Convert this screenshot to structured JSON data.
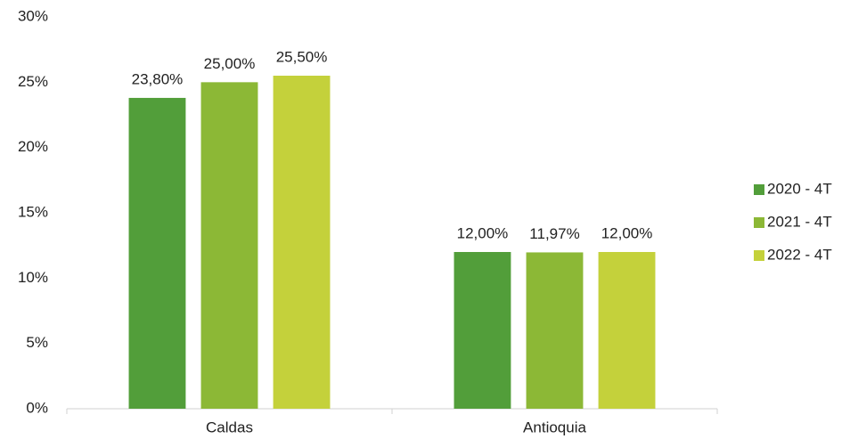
{
  "chart_data": {
    "type": "bar",
    "categories": [
      "Caldas",
      "Antioquia"
    ],
    "series": [
      {
        "name": "2020 - 4T",
        "color": "#529e3a",
        "values": [
          23.8,
          12
        ],
        "value_labels": [
          "23,80%",
          "12,00%"
        ]
      },
      {
        "name": "2021 - 4T",
        "color": "#8cb836",
        "values": [
          25,
          11.97
        ],
        "value_labels": [
          "25,00%",
          "11,97%"
        ]
      },
      {
        "name": "2022 - 4T",
        "color": "#c4d13b",
        "values": [
          25.5,
          12
        ],
        "value_labels": [
          "25,50%",
          "12,00%"
        ]
      }
    ],
    "ylim": [
      0,
      30
    ],
    "yticks": [
      {
        "value": 0,
        "label": "0%"
      },
      {
        "value": 5,
        "label": "5%"
      },
      {
        "value": 10,
        "label": "10%"
      },
      {
        "value": 15,
        "label": "15%"
      },
      {
        "value": 20,
        "label": "20%"
      },
      {
        "value": 25,
        "label": "25%"
      },
      {
        "value": 30,
        "label": "30%"
      }
    ],
    "grid": false,
    "legend": "right"
  }
}
